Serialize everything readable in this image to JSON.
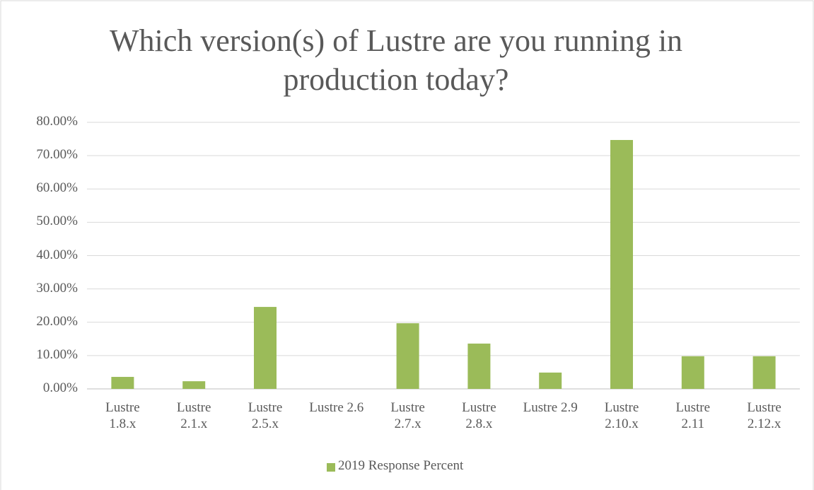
{
  "chart_data": {
    "type": "bar",
    "title": "Which version(s) of Lustre are you running in production today?",
    "categories": [
      "Lustre 1.8.x",
      "Lustre 2.1.x",
      "Lustre 2.5.x",
      "Lustre 2.6",
      "Lustre 2.7.x",
      "Lustre 2.8.x",
      "Lustre 2.9",
      "Lustre 2.10.x",
      "Lustre 2.11",
      "Lustre 2.12.x"
    ],
    "series": [
      {
        "name": "2019 Response Percent",
        "color": "#9bbb59",
        "values": [
          3.6,
          2.3,
          24.6,
          0,
          19.7,
          13.6,
          4.9,
          74.7,
          9.8,
          9.8
        ]
      }
    ],
    "ylim": [
      0,
      80
    ],
    "yticks": [
      {
        "value": 0,
        "label": "0.00%"
      },
      {
        "value": 10,
        "label": "10.00%"
      },
      {
        "value": 20,
        "label": "20.00%"
      },
      {
        "value": 30,
        "label": "30.00%"
      },
      {
        "value": 40,
        "label": "40.00%"
      },
      {
        "value": 50,
        "label": "50.00%"
      },
      {
        "value": 60,
        "label": "60.00%"
      },
      {
        "value": 70,
        "label": "70.00%"
      },
      {
        "value": 80,
        "label": "80.00%"
      }
    ],
    "grid": true,
    "legend": "bottom"
  }
}
